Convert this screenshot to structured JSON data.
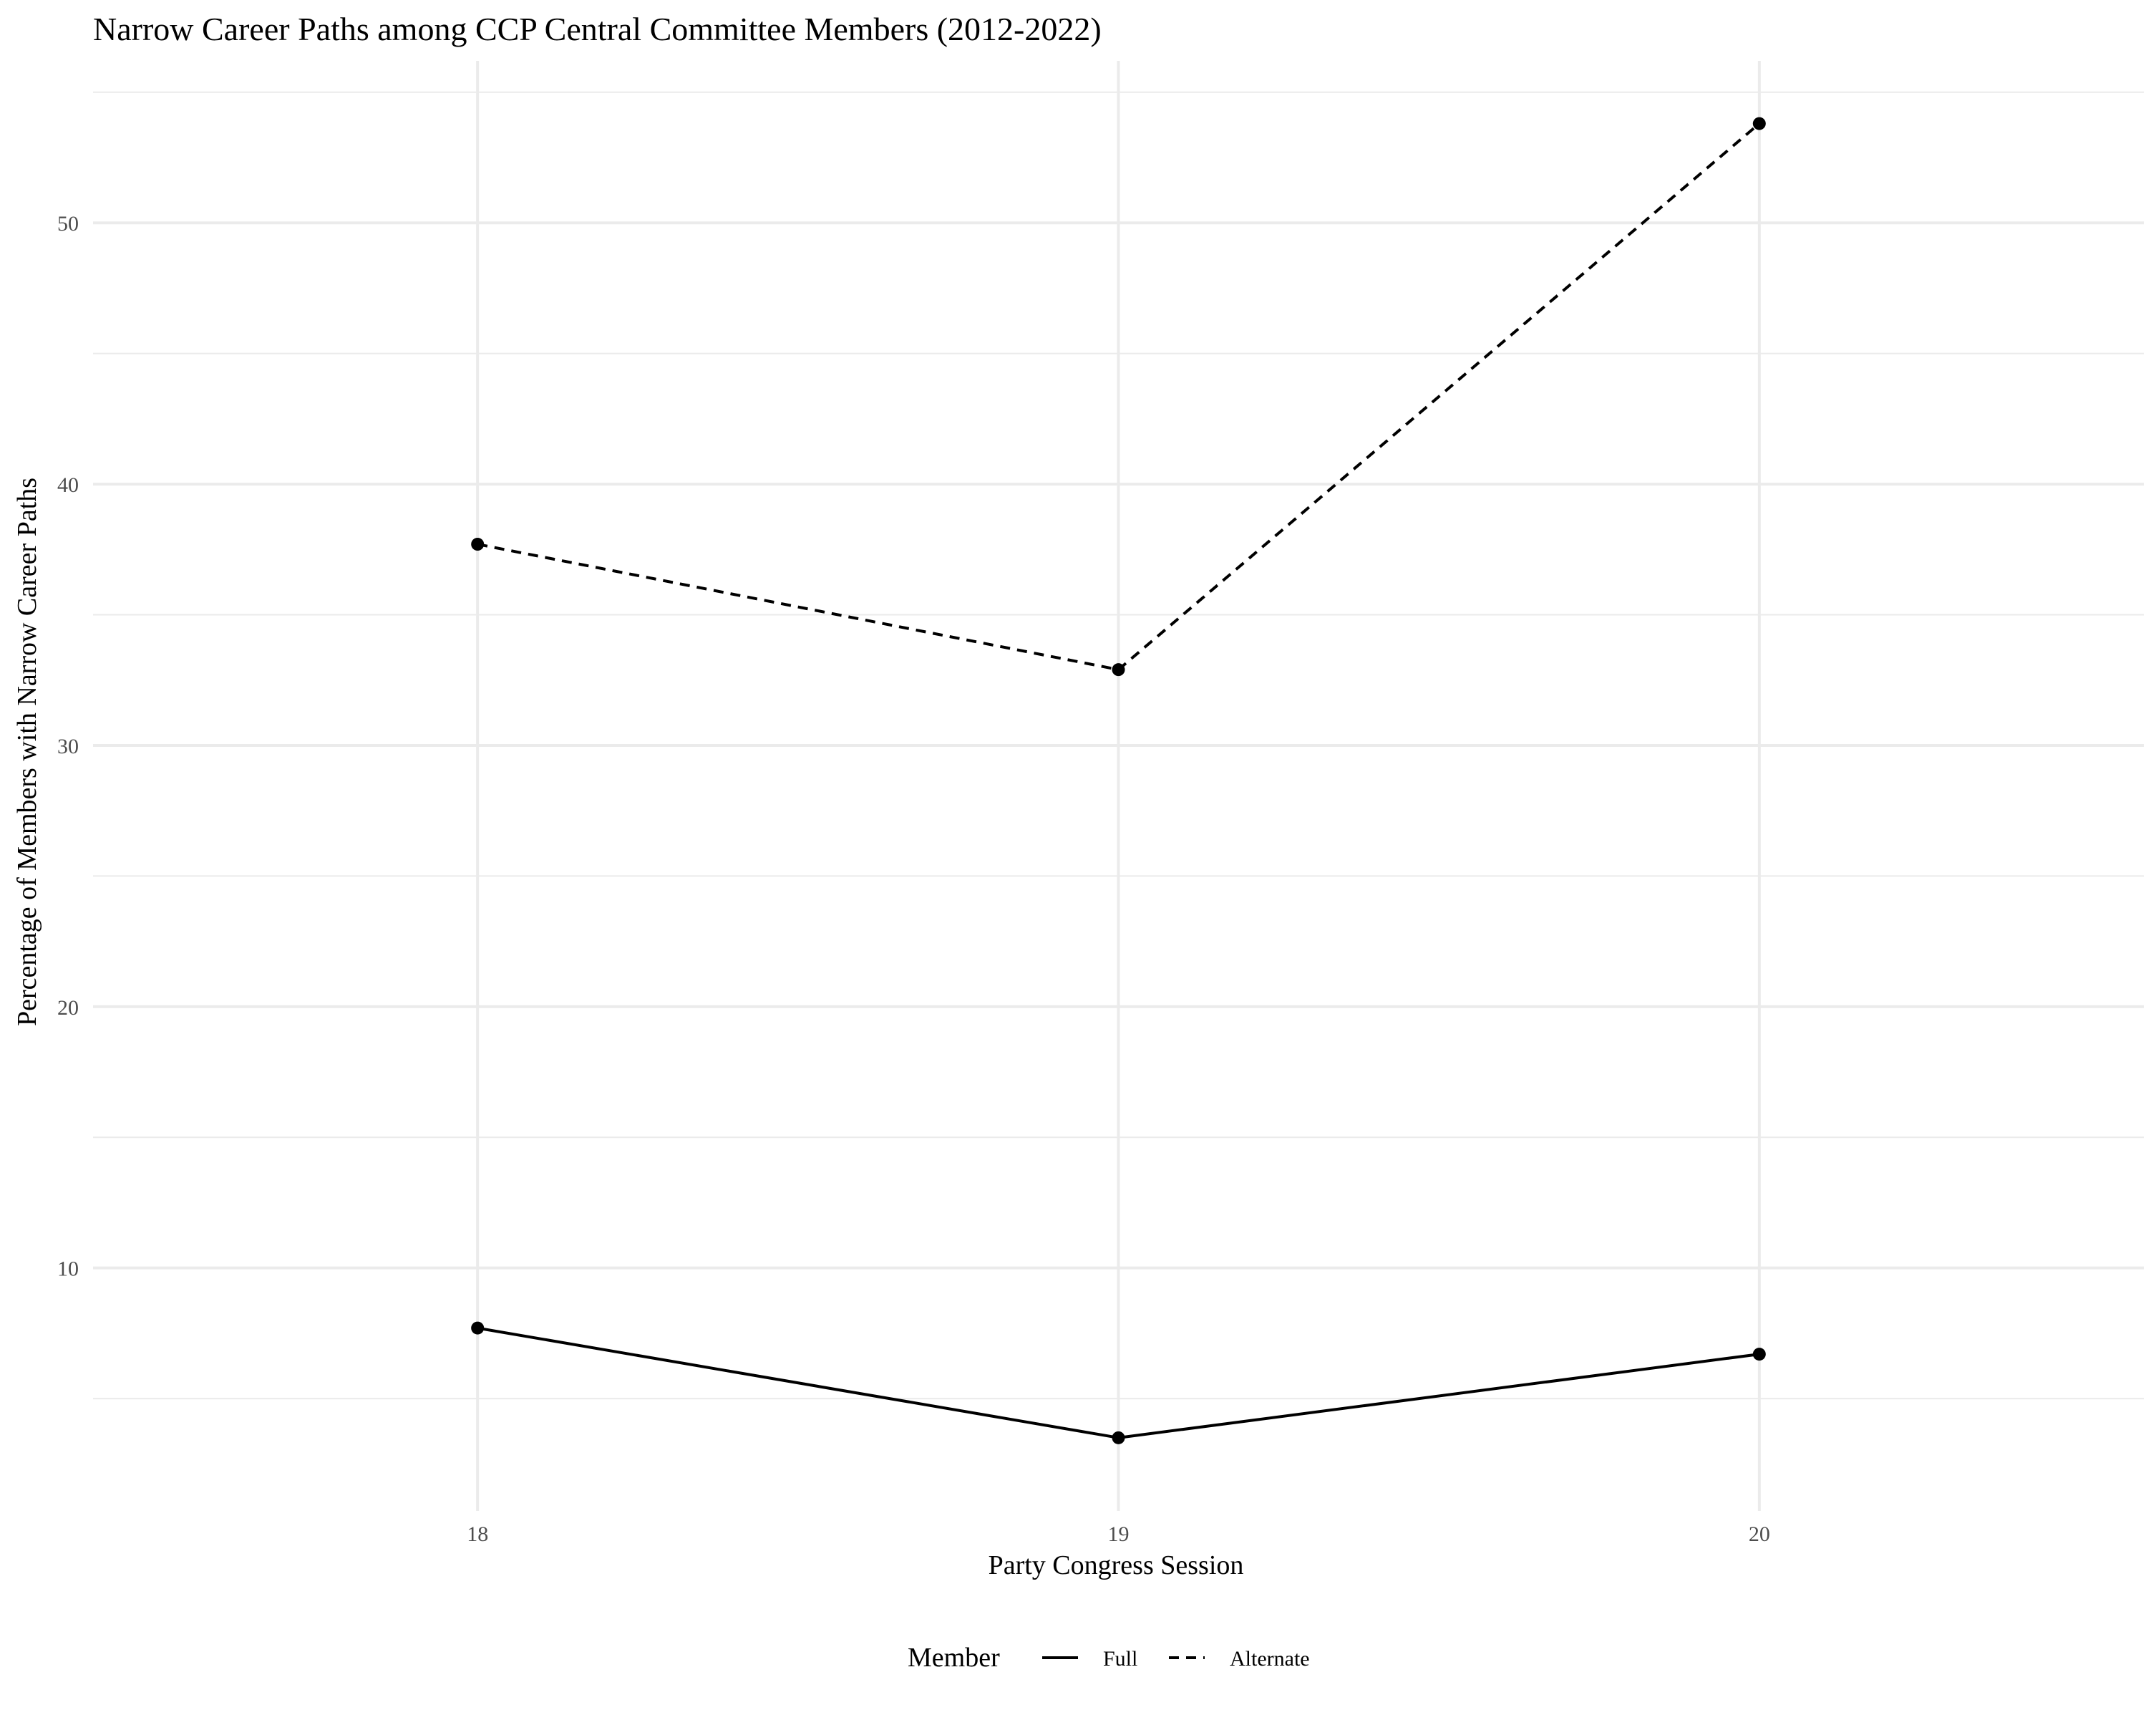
{
  "chart_data": {
    "type": "line",
    "title": "Narrow Career Paths among CCP Central Committee Members (2012-2022)",
    "xlabel": "Party Congress Session",
    "ylabel": "Percentage of Members with Narrow Career Paths",
    "x": [
      18,
      19,
      20
    ],
    "x_ticks": [
      "18",
      "19",
      "20"
    ],
    "y_ticks": [
      "10",
      "20",
      "30",
      "40",
      "50"
    ],
    "ylim": [
      0.7,
      56.2
    ],
    "xlim": [
      17.4,
      20.6
    ],
    "grid": true,
    "series": [
      {
        "name": "Full",
        "values": [
          7.7,
          3.5,
          6.7
        ],
        "linetype": "solid",
        "color": "#000000"
      },
      {
        "name": "Alternate",
        "values": [
          37.7,
          32.9,
          53.8
        ],
        "linetype": "dashed",
        "color": "#000000"
      }
    ],
    "legend": {
      "title": "Member",
      "position": "bottom"
    }
  }
}
